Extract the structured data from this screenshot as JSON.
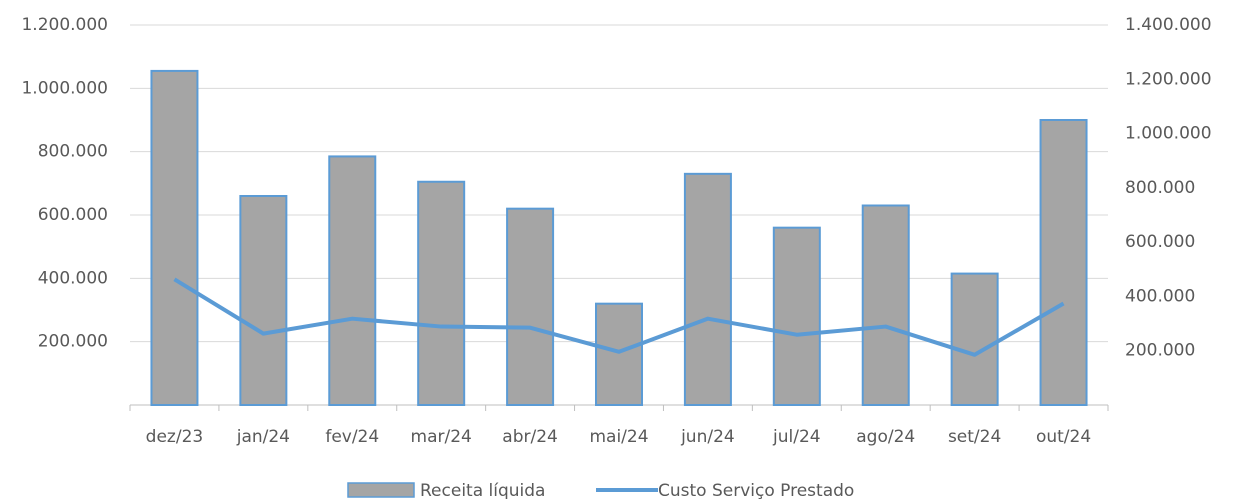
{
  "chart_data": {
    "type": "bar",
    "categories": [
      "dez/23",
      "jan/24",
      "fev/24",
      "mar/24",
      "abr/24",
      "mai/24",
      "jun/24",
      "jul/24",
      "ago/24",
      "set/24",
      "out/24"
    ],
    "series": [
      {
        "name": "Receita líquida",
        "type": "bar",
        "color": "#a5a5a5",
        "edge_color": "#5b9bd5",
        "values": [
          1055000,
          660000,
          785000,
          705000,
          620000,
          320000,
          730000,
          560000,
          630000,
          415000,
          900000
        ]
      },
      {
        "name": "Custo Serviço Prestado",
        "type": "line",
        "axis": "y2",
        "color": "#5b9bd5",
        "values": [
          463000,
          263000,
          318000,
          289000,
          285000,
          196000,
          318000,
          259000,
          289000,
          185000,
          374000
        ]
      }
    ],
    "ylim": [
      0,
      1200000
    ],
    "yticks": [
      {
        "value": 200000,
        "label": "200.000"
      },
      {
        "value": 400000,
        "label": "400.000"
      },
      {
        "value": 600000,
        "label": "600.000"
      },
      {
        "value": 800000,
        "label": "800.000"
      },
      {
        "value": 1000000,
        "label": "1.000.000"
      },
      {
        "value": 1200000,
        "label": "1.200.000"
      }
    ],
    "y2lim": [
      0,
      1400000
    ],
    "y2ticks": [
      {
        "value": 200000,
        "label": "200.000"
      },
      {
        "value": 400000,
        "label": "400.000"
      },
      {
        "value": 600000,
        "label": "600.000"
      },
      {
        "value": 800000,
        "label": "800.000"
      },
      {
        "value": 1000000,
        "label": "1.000.000"
      },
      {
        "value": 1200000,
        "label": "1.200.000"
      },
      {
        "value": 1400000,
        "label": "1.400.000"
      }
    ],
    "grid": true,
    "legend": "bottom"
  }
}
